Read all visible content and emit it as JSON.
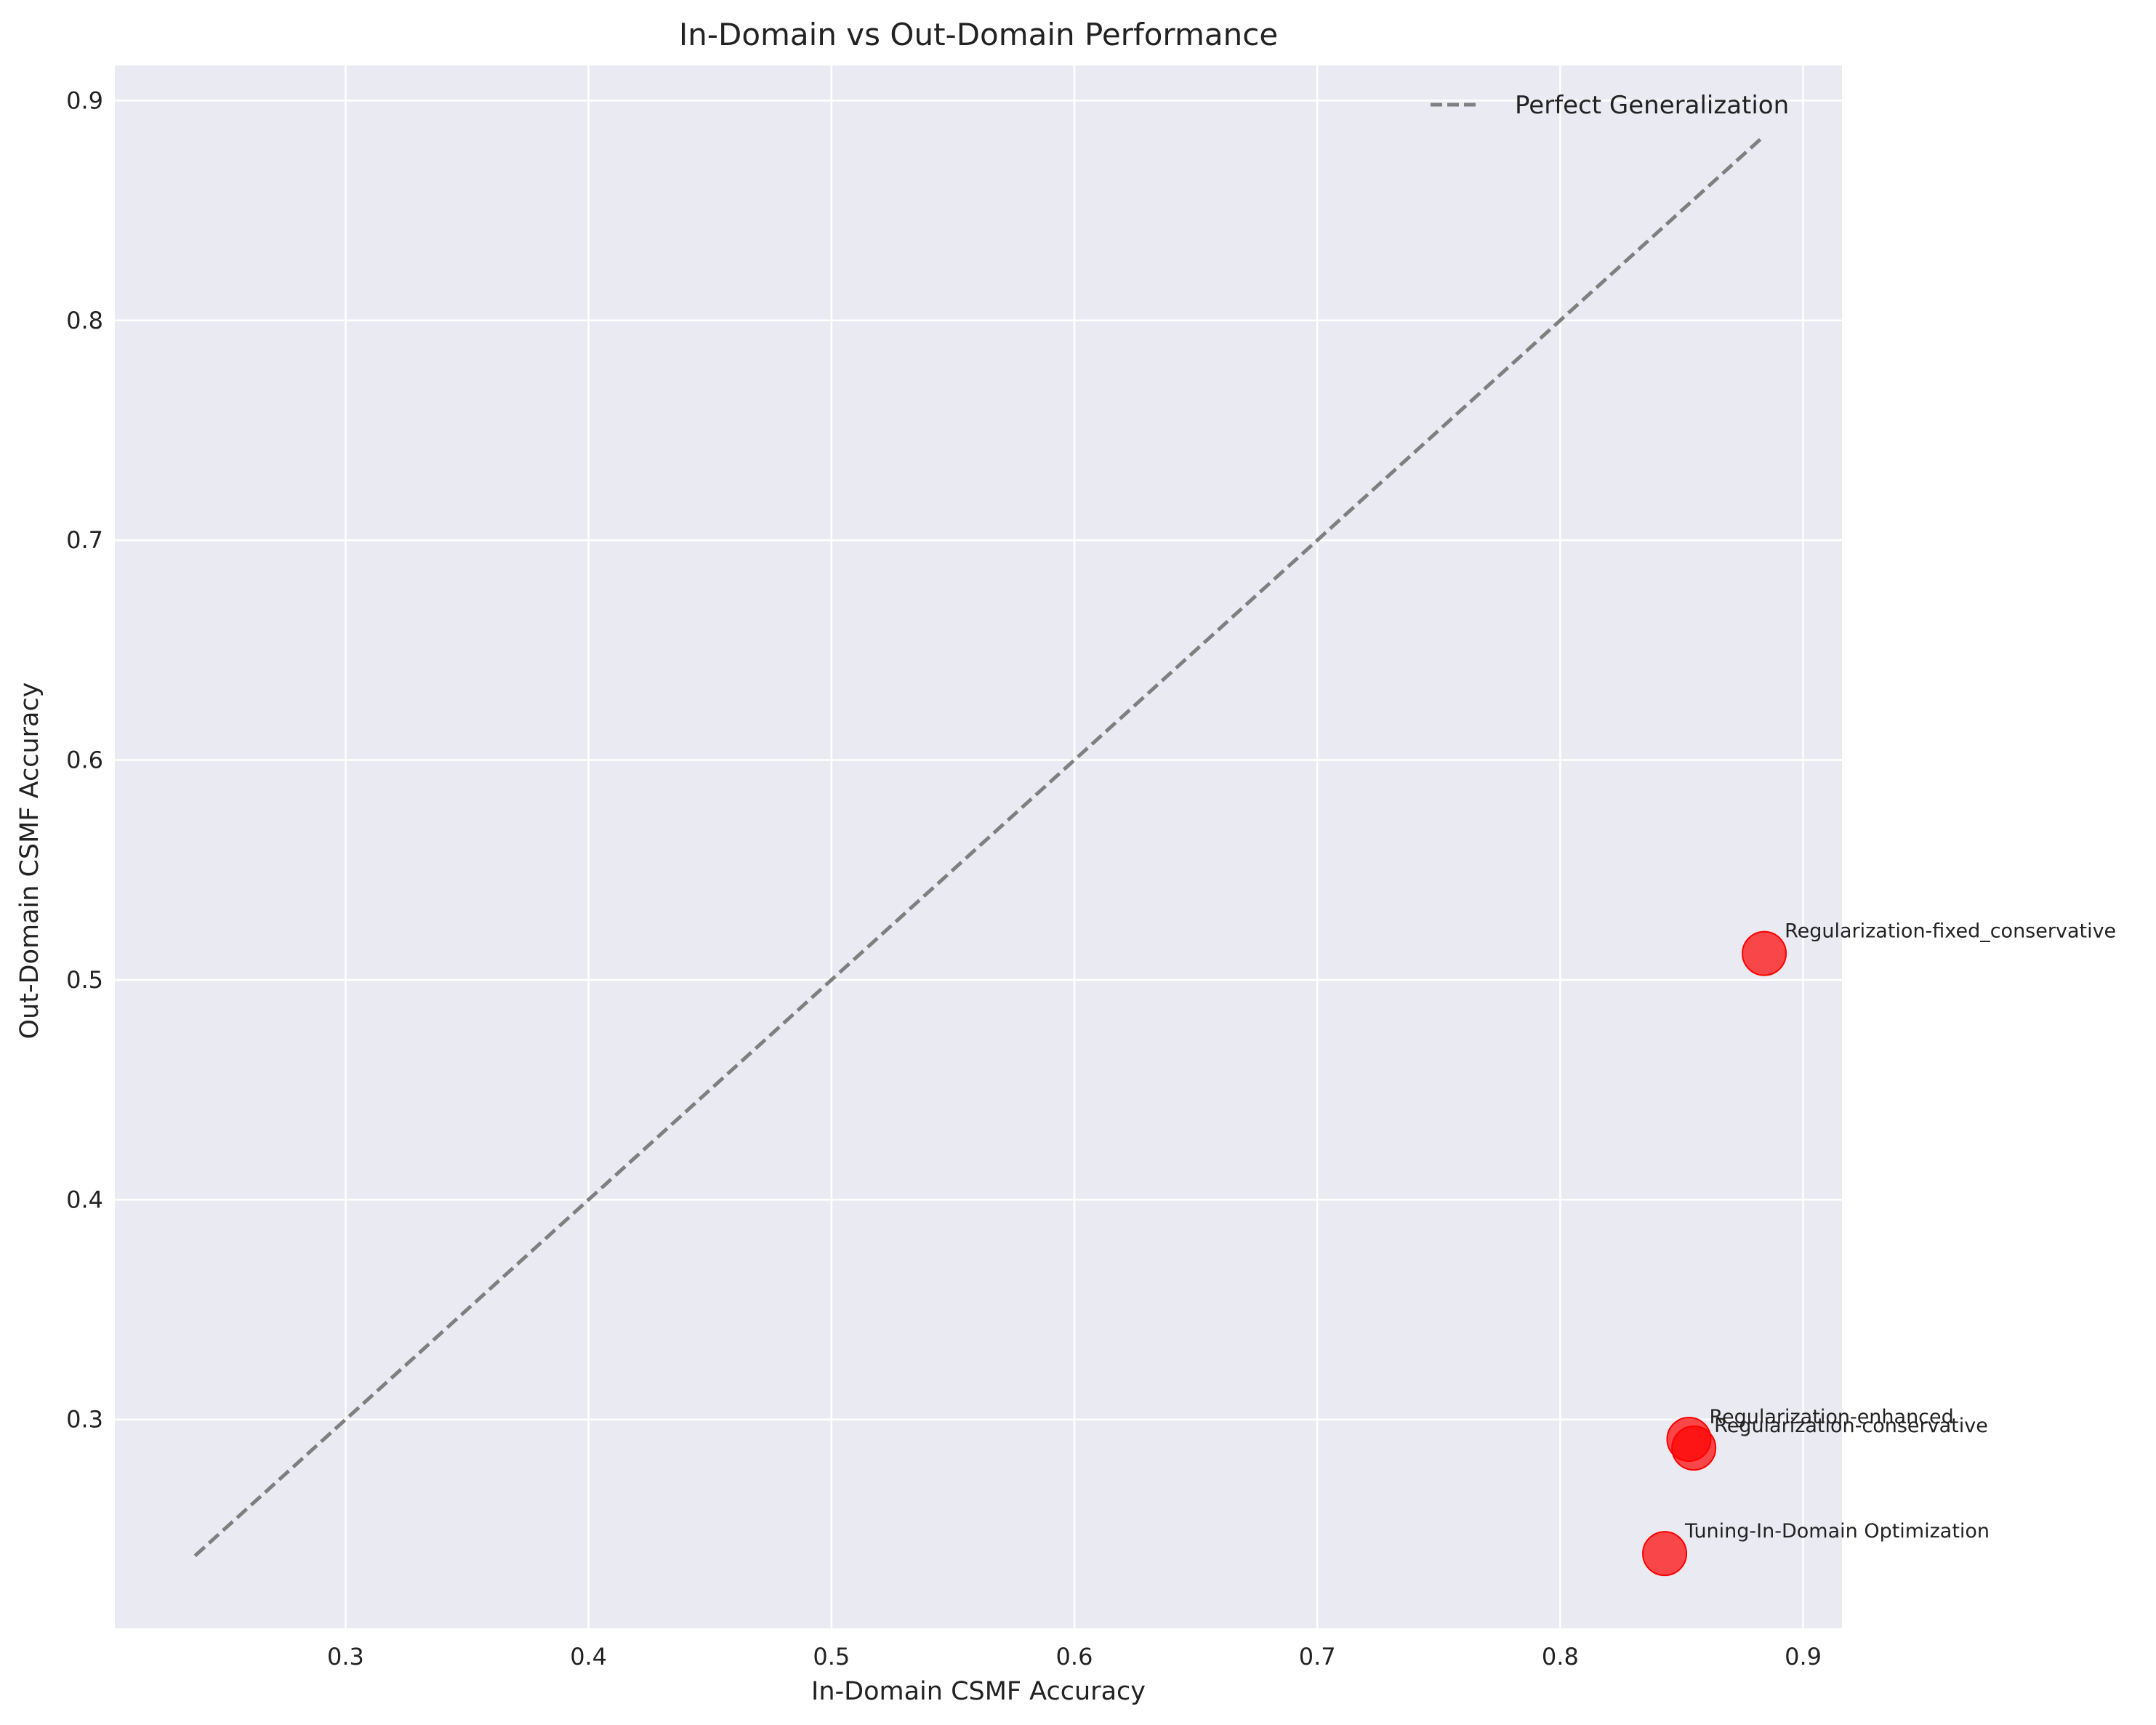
{
  "chart_data": {
    "type": "scatter",
    "title": "In-Domain vs Out-Domain Performance",
    "xlabel": "In-Domain CSMF Accuracy",
    "ylabel": "Out-Domain CSMF Accuracy",
    "xlim": [
      0.205,
      0.916
    ],
    "ylim": [
      0.205,
      0.916
    ],
    "xticks": [
      "0.3",
      "0.4",
      "0.5",
      "0.6",
      "0.7",
      "0.8",
      "0.9"
    ],
    "yticks": [
      "0.3",
      "0.4",
      "0.5",
      "0.6",
      "0.7",
      "0.8",
      "0.9"
    ],
    "grid": true,
    "background_color": "#eaeaf2",
    "point_color": "#ff0000",
    "reference_line": {
      "name": "Perfect Generalization",
      "from": [
        0.238,
        0.238
      ],
      "to": [
        0.884,
        0.884
      ],
      "style": "dashed",
      "color": "#7f7f7f"
    },
    "legend": {
      "position": "top-right",
      "entries": [
        "Perfect Generalization"
      ]
    },
    "points": [
      {
        "label": "Regularization-fixed_conservative",
        "x": 0.884,
        "y": 0.512
      },
      {
        "label": "Regularization-enhanced",
        "x": 0.853,
        "y": 0.291
      },
      {
        "label": "Regularization-conservative",
        "x": 0.855,
        "y": 0.287
      },
      {
        "label": "Tuning-In-Domain Optimization",
        "x": 0.843,
        "y": 0.239
      }
    ]
  }
}
